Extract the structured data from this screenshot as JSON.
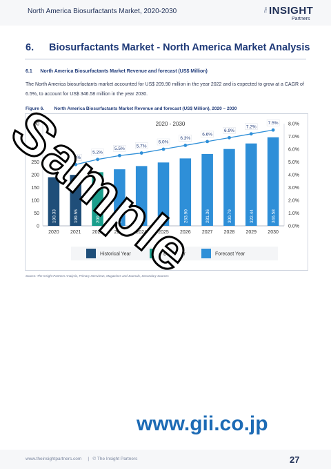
{
  "header": {
    "title": "North America Biosurfactants Market, 2020-2030"
  },
  "logo": {
    "the": "The",
    "insight": "INSIGHT",
    "partners": "Partners"
  },
  "section": {
    "number": "6.",
    "title": "Biosurfactants Market - North America Market Analysis"
  },
  "subsection": {
    "label": "6.1      North America Biosurfactants Market Revenue and forecast (US$ Million)"
  },
  "paragraph": "The North America biosurfactants market accounted for US$ 209.90 million in the year 2022 and is expected to grow at a CAGR of 6.5%, to account for US$ 346.58 million in the year 2030.",
  "figure": {
    "caption": "Figure 6.        North America Biosurfactants Market Revenue and forecast (US$ Million), 2020 – 2030"
  },
  "chart_data": {
    "type": "bar",
    "title": "2020 - 2030",
    "categories": [
      "2020",
      "2021",
      "2022",
      "2023",
      "2024",
      "2025",
      "2026",
      "2027",
      "2028",
      "2029",
      "2030"
    ],
    "values": [
      190.33,
      199.55,
      209.9,
      221.34,
      234.06,
      248.0,
      263.9,
      281.36,
      300.79,
      322.44,
      346.58
    ],
    "value_labels": [
      "190.33",
      "199.55",
      "209.9",
      "221.34",
      "234.06",
      "248",
      "263.90",
      "281.36",
      "300.79",
      "322.44",
      "346.58"
    ],
    "bar_types": [
      "historical",
      "historical",
      "base",
      "forecast",
      "forecast",
      "forecast",
      "forecast",
      "forecast",
      "forecast",
      "forecast",
      "forecast"
    ],
    "growth_line": {
      "start_index": 1,
      "values": [
        null,
        4.8,
        5.2,
        5.5,
        5.7,
        6.0,
        6.3,
        6.6,
        6.9,
        7.2,
        7.5
      ],
      "labels": [
        "",
        "4.8%",
        "5.2%",
        "5.5%",
        "5.7%",
        "6.0%",
        "6.3%",
        "6.6%",
        "6.9%",
        "7.2%",
        "7.5%"
      ]
    },
    "y_left": {
      "min": 0,
      "max": 400,
      "ticks": [
        "0",
        "50",
        "100",
        "150",
        "200",
        "250",
        "300",
        "350",
        "400"
      ]
    },
    "y_right": {
      "min": 0,
      "max": 8,
      "ticks": [
        "0.0%",
        "1.0%",
        "2.0%",
        "3.0%",
        "4.0%",
        "5.0%",
        "6.0%",
        "7.0%",
        "8.0%"
      ]
    },
    "legend": [
      {
        "key": "historical",
        "label": "Historical Year",
        "color": "#1f4e79"
      },
      {
        "key": "base",
        "label": "Base Year",
        "color": "#1a9e8c"
      },
      {
        "key": "forecast",
        "label": "Forecast Year",
        "color": "#2e8fd8"
      }
    ],
    "line_color": "#2e8fd8",
    "grid": false
  },
  "source": "Source: The Insight Partners Analysis, Primary Interviews, Magazines and Journals, Secondary Sources",
  "watermark": "Sample",
  "url": "www.gii.co.jp",
  "footer": {
    "text": "www.theinsightpartners.com     |   © The Insight Partners",
    "page": "27"
  }
}
